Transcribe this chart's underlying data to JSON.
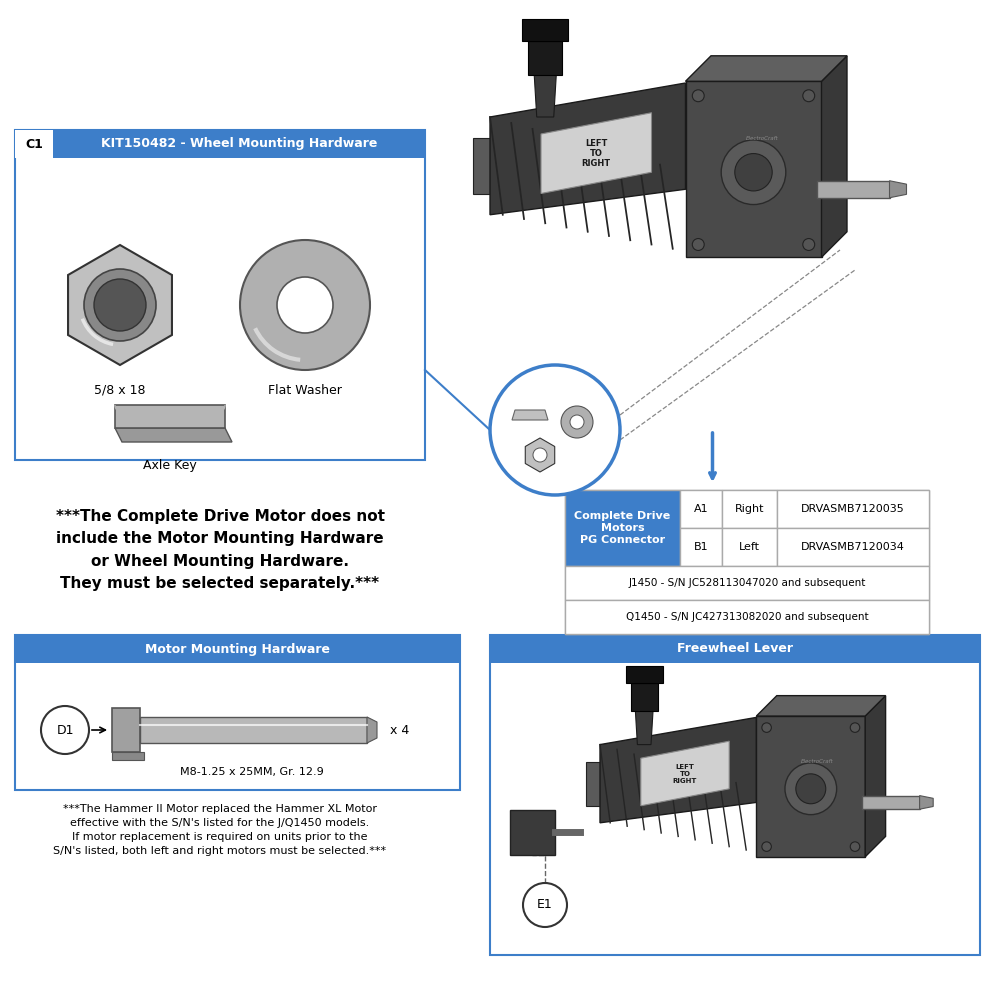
{
  "bg_color": "#ffffff",
  "blue": "#3d7ec9",
  "gray_part": "#aaaaaa",
  "text_black": "#000000",
  "text_white": "#ffffff",
  "c1_label": "C1",
  "c1_title": "KIT150482 - Wheel Mounting Hardware",
  "part_58x18": "5/8 x 18",
  "part_flat_washer": "Flat Washer",
  "part_axle_key": "Axle Key",
  "d1_label": "D1",
  "motor_hw_title": "Motor Mounting Hardware",
  "bolt_label": "M8-1.25 x 25MM, Gr. 12.9",
  "bolt_qty": "x 4",
  "table_header": "Complete Drive\nMotors\nPG Connector",
  "row_a1_id": "A1",
  "row_a1_side": "Right",
  "row_a1_part": "DRVASMB7120035",
  "row_b1_id": "B1",
  "row_b1_side": "Left",
  "row_b1_part": "DRVASMB7120034",
  "row_j1450": "J1450 - S/N JC528113047020 and subsequent",
  "row_q1450": "Q1450 - S/N JC427313082020 and subsequent",
  "freewheel_title": "Freewheel Lever",
  "e1_label": "E1",
  "warn_line1": "***The Complete Drive Motor does not",
  "warn_line2": "include the Motor Mounting Hardware",
  "warn_line3": "or Wheel Mounting Hardware.",
  "warn_line4": "They must be selected separately.***",
  "note_line1": "***The Hammer II Motor replaced the Hammer XL Motor",
  "note_line2": "effective with the S/N's listed for the J/Q1450 models.",
  "note_line3": "If motor replacement is required on units prior to the",
  "note_line4": "S/N's listed, both left and right motors must be selected.***"
}
